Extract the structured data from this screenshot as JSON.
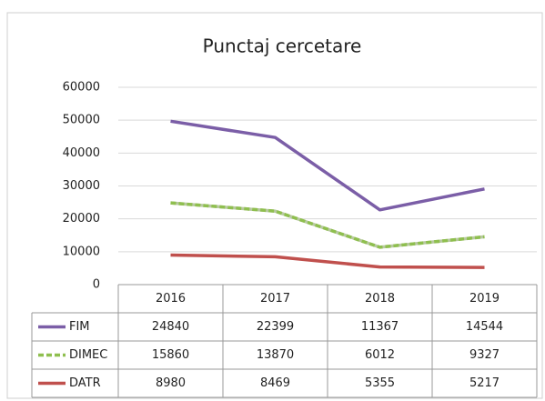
{
  "chart_data": {
    "type": "line",
    "stacked": true,
    "title": "Punctaj cercetare",
    "categories": [
      "2016",
      "2017",
      "2018",
      "2019"
    ],
    "series": [
      {
        "name": "FIM",
        "color": "#7b5ea7",
        "values": [
          24840,
          22399,
          11367,
          14544
        ]
      },
      {
        "name": "DIMEC",
        "color": "#8fbf4f",
        "dashed": true,
        "values": [
          15860,
          13870,
          6012,
          9327
        ]
      },
      {
        "name": "DATR",
        "color": "#c0504d",
        "values": [
          8980,
          8469,
          5355,
          5217
        ]
      }
    ],
    "ylim": [
      0,
      60000
    ],
    "yticks": [
      0,
      10000,
      20000,
      30000,
      40000,
      50000,
      60000
    ],
    "grid": true,
    "data_table": true
  }
}
